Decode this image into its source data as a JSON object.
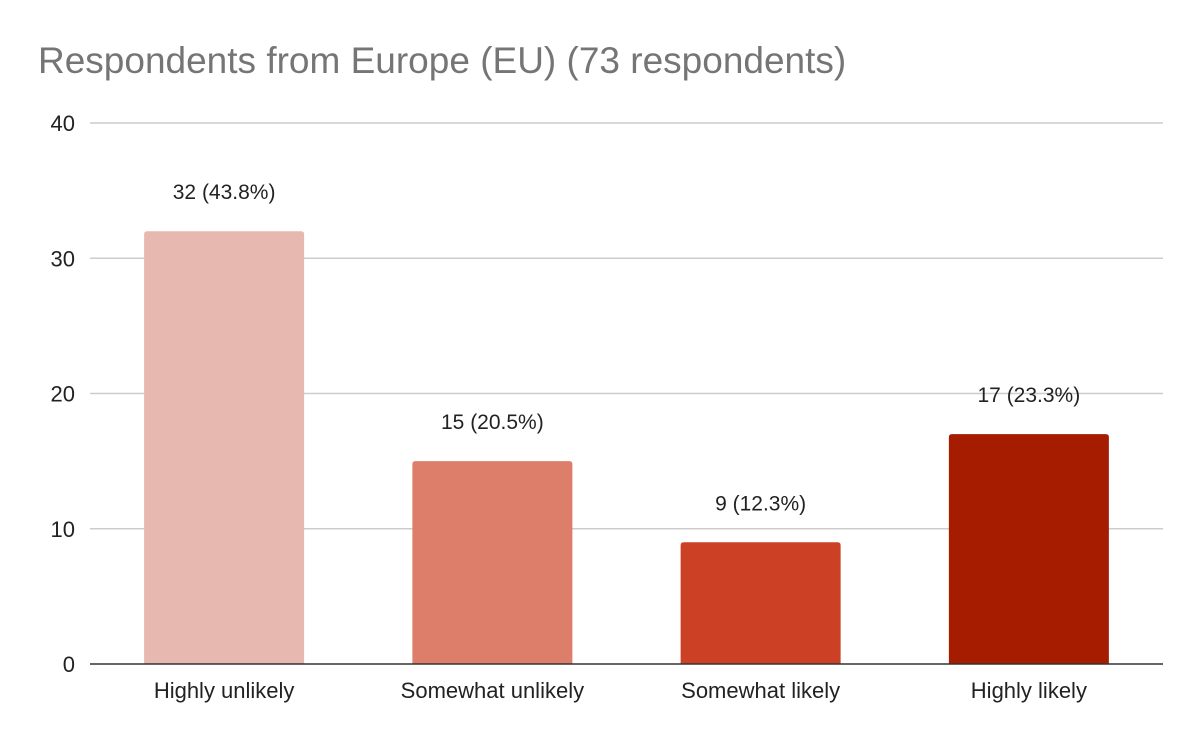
{
  "chart_data": {
    "type": "bar",
    "title": "Respondents from Europe (EU) (73 respondents)",
    "xlabel": "",
    "ylabel": "",
    "categories": [
      "Highly unlikely",
      "Somewhat unlikely",
      "Somewhat likely",
      "Highly likely"
    ],
    "values": [
      32,
      15,
      9,
      17
    ],
    "data_labels": [
      "32 (43.8%)",
      "15 (20.5%)",
      "9 (12.3%)",
      "17 (23.3%)"
    ],
    "bar_colors": [
      "#e6b8af",
      "#dd7e6b",
      "#cc4125",
      "#a61c00"
    ],
    "ylim": [
      0,
      40
    ],
    "yticks": [
      0,
      10,
      20,
      30,
      40
    ],
    "grid": true,
    "legend": "none"
  }
}
